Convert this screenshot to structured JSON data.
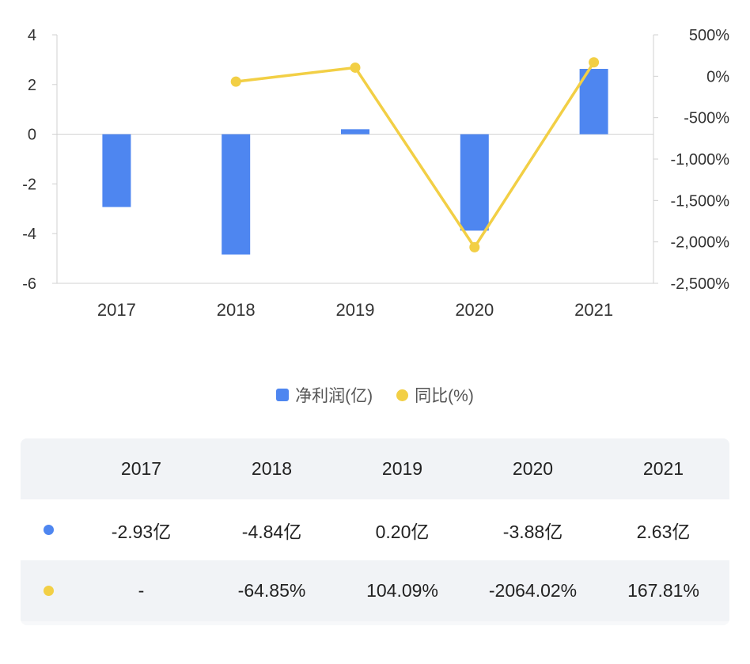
{
  "colors": {
    "bar": "#4e86f0",
    "line": "#f2cf45",
    "axis": "#d0d0d0"
  },
  "chart_data": {
    "type": "bar+line",
    "categories": [
      "2017",
      "2018",
      "2019",
      "2020",
      "2021"
    ],
    "series": [
      {
        "name": "净利润(亿)",
        "type": "bar",
        "axis": "left",
        "values": [
          -2.93,
          -4.84,
          0.2,
          -3.88,
          2.63
        ]
      },
      {
        "name": "同比(%)",
        "type": "line",
        "axis": "right",
        "values": [
          null,
          -64.85,
          104.09,
          -2064.02,
          167.81
        ]
      }
    ],
    "y_left": {
      "ticks": [
        "4",
        "2",
        "0",
        "-2",
        "-4",
        "-6"
      ],
      "range": [
        -6,
        4
      ]
    },
    "y_right": {
      "ticks": [
        "500%",
        "0%",
        "-500%",
        "-1,000%",
        "-1,500%",
        "-2,000%",
        "-2,500%"
      ],
      "range": [
        -2500,
        500
      ]
    },
    "legend_position": "bottom"
  },
  "legend": {
    "bar_label": "净利润(亿)",
    "line_label": "同比(%)"
  },
  "table": {
    "header": [
      "2017",
      "2018",
      "2019",
      "2020",
      "2021"
    ],
    "row_profit": [
      "-2.93亿",
      "-4.84亿",
      "0.20亿",
      "-3.88亿",
      "2.63亿"
    ],
    "row_yoy": [
      "-",
      "-64.85%",
      "104.09%",
      "-2064.02%",
      "167.81%"
    ]
  }
}
